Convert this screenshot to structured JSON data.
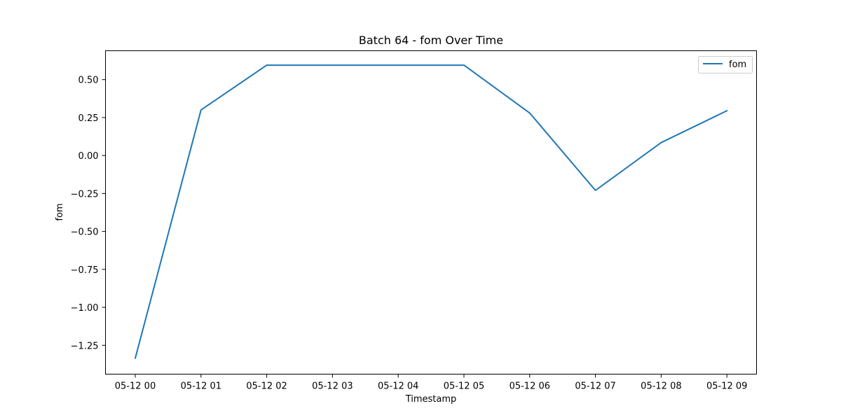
{
  "chart_data": {
    "type": "line",
    "title": "Batch 64 - fom Over Time",
    "xlabel": "Timestamp",
    "ylabel": "fom",
    "x": [
      "05-12 00",
      "05-12 01",
      "05-12 02",
      "05-12 03",
      "05-12 04",
      "05-12 05",
      "05-12 06",
      "05-12 07",
      "05-12 08",
      "05-12 09"
    ],
    "xticks": [
      "05-12 00",
      "05-12 01",
      "05-12 02",
      "05-12 03",
      "05-12 04",
      "05-12 05",
      "05-12 06",
      "05-12 07",
      "05-12 08",
      "05-12 09"
    ],
    "yticks": [
      0.5,
      0.25,
      0.0,
      -0.25,
      -0.5,
      -0.75,
      -1.0,
      -1.25
    ],
    "ytick_labels": [
      "0.50",
      "0.25",
      "0.00",
      "−0.25",
      "−0.50",
      "−0.75",
      "−1.00",
      "−1.25"
    ],
    "ylim": [
      -1.44,
      0.69
    ],
    "grid": false,
    "legend_position": "top-right",
    "series": [
      {
        "name": "fom",
        "color": "#1f77b4",
        "values": [
          -1.335,
          0.3,
          0.595,
          0.595,
          0.595,
          0.595,
          0.28,
          -0.23,
          0.085,
          0.295
        ]
      }
    ]
  }
}
